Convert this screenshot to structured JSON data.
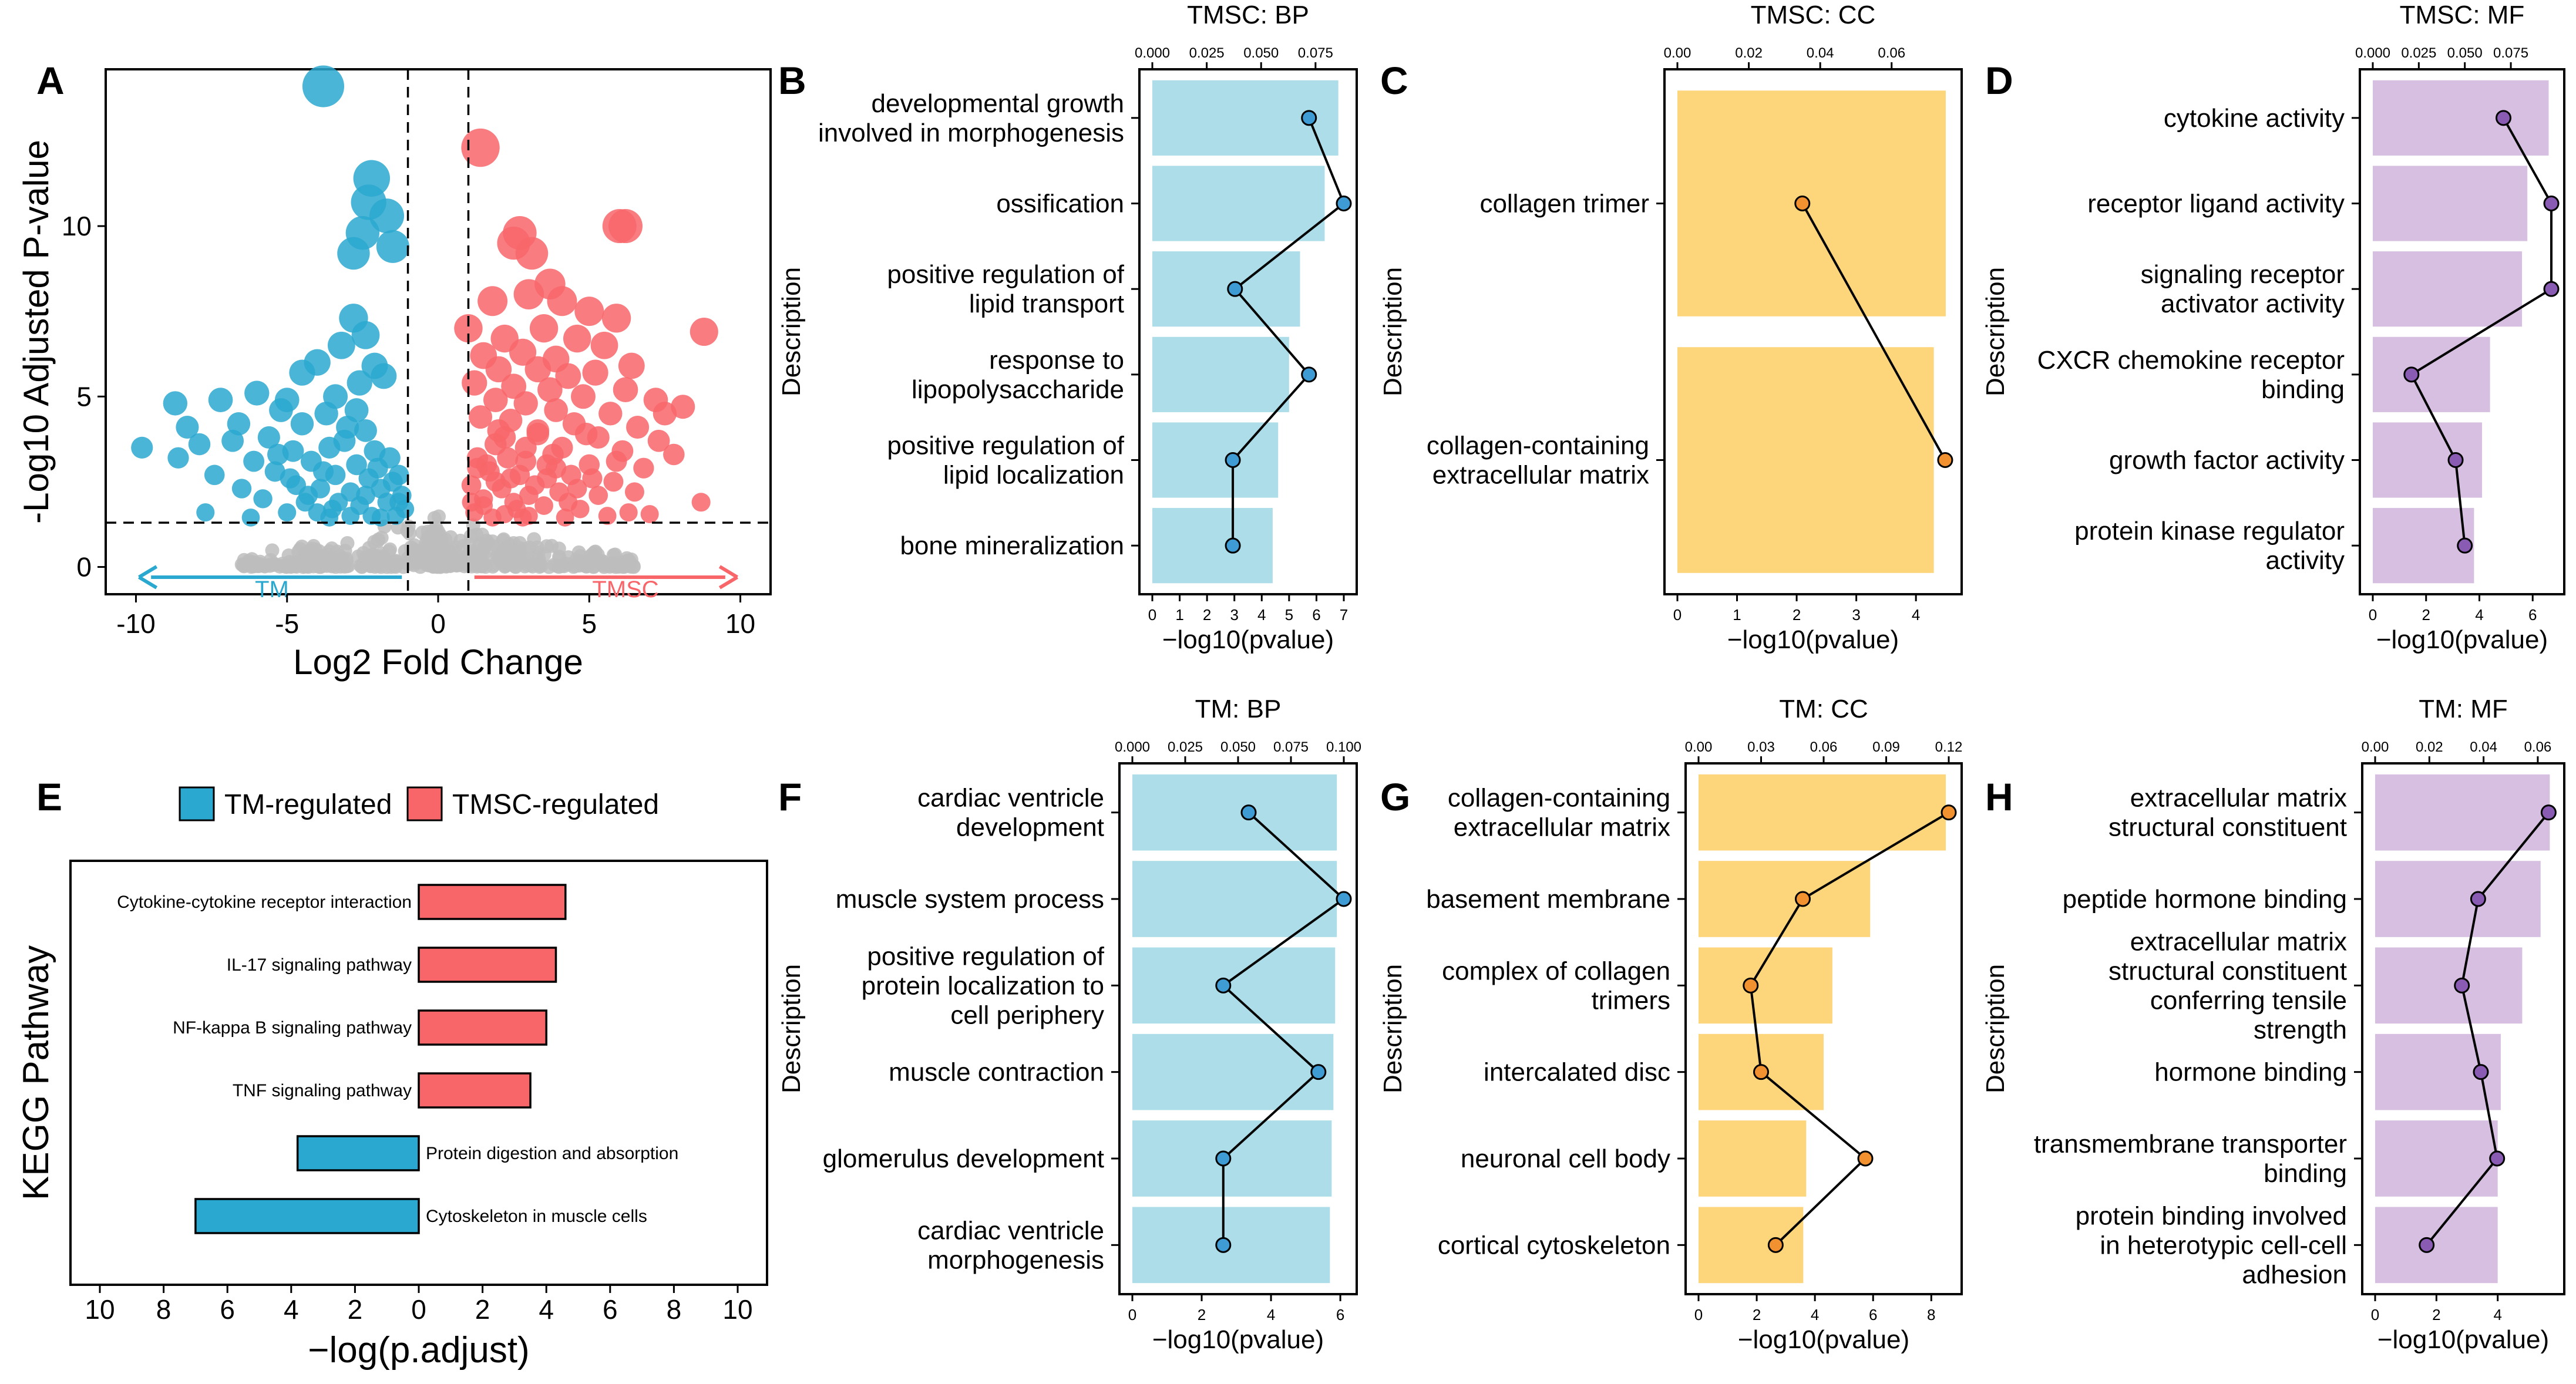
{
  "colors": {
    "tm": "#2aa8cf",
    "tmsc": "#f8666a",
    "grey": "#bdbdbd",
    "bp_bar": "#acdde9",
    "bp_dot": "#3e9bd3",
    "cc_bar": "#fdd57b",
    "cc_dot": "#f2912f",
    "mf_bar": "#d6bfe0",
    "mf_dot": "#8a5bb2"
  },
  "panel_labels": [
    "A",
    "B",
    "C",
    "D",
    "E",
    "F",
    "G",
    "H"
  ],
  "chart_data": [
    {
      "id": "A",
      "type": "scatter",
      "title": "",
      "xlabel": "Log2 Fold Change",
      "ylabel": "-Log10 Adjusted P-value",
      "xlim": [
        -11,
        11
      ],
      "ylim": [
        -0.8,
        14.6
      ],
      "xticks": [
        -10,
        -5,
        0,
        5,
        10
      ],
      "yticks": [
        0,
        5,
        10
      ],
      "thresholds": {
        "fc": [
          -1,
          1
        ],
        "p": 1.3
      },
      "arrow_labels": {
        "down": "TM",
        "up": "TMSC"
      },
      "down_points": [
        [
          -3.8,
          14.1
        ],
        [
          -2.2,
          11.4
        ],
        [
          -2.3,
          10.7
        ],
        [
          -1.7,
          10.3
        ],
        [
          -2.5,
          9.8
        ],
        [
          -2.8,
          9.2
        ],
        [
          -1.5,
          9.4
        ],
        [
          -2.8,
          7.3
        ],
        [
          -2.4,
          6.8
        ],
        [
          -4.0,
          6.0
        ],
        [
          -3.2,
          6.5
        ],
        [
          -2.1,
          5.9
        ],
        [
          -1.8,
          5.6
        ],
        [
          -4.5,
          5.7
        ],
        [
          -2.6,
          5.4
        ],
        [
          -3.4,
          5.0
        ],
        [
          -5.0,
          4.9
        ],
        [
          -6.0,
          5.1
        ],
        [
          -8.7,
          4.8
        ],
        [
          -7.2,
          4.9
        ],
        [
          -5.2,
          4.6
        ],
        [
          -3.7,
          4.5
        ],
        [
          -8.3,
          4.1
        ],
        [
          -6.6,
          4.2
        ],
        [
          -4.5,
          4.2
        ],
        [
          -3.0,
          4.1
        ],
        [
          -2.4,
          4.0
        ],
        [
          -7.9,
          3.6
        ],
        [
          -5.6,
          3.8
        ],
        [
          -9.8,
          3.5
        ],
        [
          -4.8,
          3.4
        ],
        [
          -3.6,
          3.5
        ],
        [
          -2.1,
          3.4
        ],
        [
          -8.6,
          3.2
        ],
        [
          -6.1,
          3.1
        ],
        [
          -4.2,
          3.1
        ],
        [
          -2.7,
          3.0
        ],
        [
          -1.6,
          3.2
        ],
        [
          -7.4,
          2.7
        ],
        [
          -5.4,
          2.8
        ],
        [
          -3.4,
          2.7
        ],
        [
          -2.3,
          2.6
        ],
        [
          -1.3,
          2.7
        ],
        [
          -6.5,
          2.3
        ],
        [
          -4.7,
          2.4
        ],
        [
          -3.9,
          2.3
        ],
        [
          -2.9,
          2.2
        ],
        [
          -1.9,
          2.3
        ],
        [
          -1.2,
          2.1
        ],
        [
          -5.8,
          2.0
        ],
        [
          -4.4,
          1.9
        ],
        [
          -3.3,
          1.9
        ],
        [
          -2.6,
          1.8
        ],
        [
          -1.7,
          1.9
        ],
        [
          -1.1,
          1.7
        ],
        [
          -7.7,
          1.6
        ],
        [
          -5.0,
          1.6
        ],
        [
          -4.0,
          1.6
        ],
        [
          -2.9,
          1.5
        ],
        [
          -2.2,
          1.5
        ],
        [
          -1.4,
          1.5
        ],
        [
          -6.2,
          1.45
        ],
        [
          -3.6,
          1.45
        ],
        [
          -1.9,
          1.45
        ],
        [
          -4.9,
          2.6
        ],
        [
          -3.1,
          3.7
        ],
        [
          -2.0,
          2.9
        ],
        [
          -3.8,
          2.8
        ],
        [
          -5.3,
          3.3
        ],
        [
          -6.8,
          3.7
        ],
        [
          -1.5,
          2.5
        ],
        [
          -2.7,
          4.6
        ],
        [
          -4.3,
          2.1
        ],
        [
          -3.5,
          1.7
        ],
        [
          -2.4,
          2.1
        ],
        [
          -1.3,
          1.9
        ]
      ],
      "up_points": [
        [
          1.4,
          12.3
        ],
        [
          6.2,
          10.0
        ],
        [
          6.0,
          10.0
        ],
        [
          2.7,
          9.8
        ],
        [
          2.5,
          9.5
        ],
        [
          3.1,
          9.2
        ],
        [
          3.7,
          8.3
        ],
        [
          3.0,
          8.0
        ],
        [
          1.8,
          7.8
        ],
        [
          4.1,
          7.8
        ],
        [
          5.0,
          7.5
        ],
        [
          5.9,
          7.3
        ],
        [
          8.8,
          6.9
        ],
        [
          1.0,
          7.0
        ],
        [
          3.5,
          7.0
        ],
        [
          2.2,
          6.7
        ],
        [
          4.6,
          6.7
        ],
        [
          5.5,
          6.5
        ],
        [
          1.5,
          6.2
        ],
        [
          2.8,
          6.3
        ],
        [
          3.9,
          6.1
        ],
        [
          6.4,
          5.9
        ],
        [
          2.0,
          5.8
        ],
        [
          3.3,
          5.8
        ],
        [
          4.3,
          5.6
        ],
        [
          5.2,
          5.7
        ],
        [
          1.2,
          5.4
        ],
        [
          2.5,
          5.3
        ],
        [
          3.7,
          5.2
        ],
        [
          6.2,
          5.2
        ],
        [
          4.8,
          5.0
        ],
        [
          7.2,
          4.9
        ],
        [
          1.9,
          4.9
        ],
        [
          2.9,
          4.8
        ],
        [
          8.1,
          4.7
        ],
        [
          3.9,
          4.6
        ],
        [
          5.7,
          4.5
        ],
        [
          7.5,
          4.5
        ],
        [
          1.4,
          4.4
        ],
        [
          2.4,
          4.3
        ],
        [
          4.5,
          4.2
        ],
        [
          6.6,
          4.1
        ],
        [
          3.3,
          4.0
        ],
        [
          5.3,
          3.8
        ],
        [
          7.3,
          3.7
        ],
        [
          1.9,
          3.6
        ],
        [
          2.9,
          3.5
        ],
        [
          4.1,
          3.5
        ],
        [
          6.1,
          3.4
        ],
        [
          7.8,
          3.3
        ],
        [
          1.3,
          3.2
        ],
        [
          2.3,
          3.2
        ],
        [
          3.6,
          3.0
        ],
        [
          5.0,
          3.0
        ],
        [
          6.8,
          2.9
        ],
        [
          1.7,
          2.8
        ],
        [
          2.7,
          2.7
        ],
        [
          4.4,
          2.7
        ],
        [
          5.8,
          2.5
        ],
        [
          1.1,
          2.4
        ],
        [
          2.1,
          2.3
        ],
        [
          3.2,
          2.4
        ],
        [
          4.0,
          2.2
        ],
        [
          5.3,
          2.1
        ],
        [
          8.7,
          1.9
        ],
        [
          1.5,
          2.0
        ],
        [
          2.5,
          1.9
        ],
        [
          3.5,
          1.8
        ],
        [
          4.7,
          1.7
        ],
        [
          6.3,
          1.6
        ],
        [
          1.2,
          1.6
        ],
        [
          2.2,
          1.55
        ],
        [
          3.0,
          1.5
        ],
        [
          4.2,
          1.45
        ],
        [
          5.6,
          1.5
        ],
        [
          7.0,
          1.55
        ],
        [
          1.8,
          1.45
        ],
        [
          2.8,
          1.45
        ],
        [
          2.0,
          4.0
        ],
        [
          3.8,
          3.3
        ],
        [
          4.9,
          3.9
        ],
        [
          1.6,
          3.0
        ],
        [
          3.0,
          2.1
        ],
        [
          2.4,
          2.6
        ],
        [
          1.3,
          2.9
        ],
        [
          4.6,
          2.3
        ],
        [
          3.6,
          2.6
        ],
        [
          5.9,
          3.1
        ],
        [
          2.6,
          1.7
        ],
        [
          1.9,
          2.5
        ],
        [
          3.3,
          3.9
        ],
        [
          4.3,
          1.9
        ],
        [
          1.5,
          1.8
        ],
        [
          2.9,
          3.1
        ],
        [
          3.9,
          2.9
        ],
        [
          5.1,
          2.6
        ],
        [
          6.5,
          2.2
        ],
        [
          2.2,
          3.8
        ],
        [
          1.1,
          1.9
        ]
      ]
    },
    {
      "id": "B",
      "type": "bar",
      "title": "TMSC: BP",
      "xlabel": "−log10(pvalue)",
      "ylabel": "Description",
      "palette": "bp",
      "categories": [
        [
          "developmental growth",
          "involved in morphogenesis"
        ],
        [
          "ossification"
        ],
        [
          "positive regulation of",
          "lipid transport"
        ],
        [
          "response to",
          "lipopolysaccharide"
        ],
        [
          "positive regulation of",
          "lipid localization"
        ],
        [
          "bone mineralization"
        ]
      ],
      "values": [
        6.8,
        6.3,
        5.4,
        5.0,
        4.6,
        4.4
      ],
      "xlim": [
        0,
        7.0
      ],
      "xticks": [
        0,
        1,
        2,
        3,
        4,
        5,
        6,
        7
      ],
      "overlay": [
        0.072,
        0.088,
        0.038,
        0.072,
        0.037,
        0.037
      ],
      "overlay_lim": [
        0,
        0.088
      ],
      "overlay_ticks": [
        "0.000",
        "0.025",
        "0.050",
        "0.075"
      ]
    },
    {
      "id": "C",
      "type": "bar",
      "title": "TMSC: CC",
      "xlabel": "−log10(pvalue)",
      "ylabel": "Description",
      "palette": "cc",
      "categories": [
        [
          "collagen trimer"
        ],
        [
          "collagen-containing",
          "extracellular matrix"
        ]
      ],
      "values": [
        4.5,
        4.3
      ],
      "xlim": [
        0,
        4.55
      ],
      "xticks": [
        0,
        1,
        2,
        3,
        4
      ],
      "overlay": [
        0.035,
        0.075
      ],
      "overlay_lim": [
        0,
        0.076
      ],
      "overlay_ticks": [
        "0.00",
        "0.02",
        "0.04",
        "0.06"
      ]
    },
    {
      "id": "D",
      "type": "bar",
      "title": "TMSC: MF",
      "xlabel": "−log10(pvalue)",
      "ylabel": "Description",
      "palette": "mf",
      "categories": [
        [
          "cytokine activity"
        ],
        [
          "receptor ligand activity"
        ],
        [
          "signaling receptor",
          "activator activity"
        ],
        [
          "CXCR chemokine receptor",
          "binding"
        ],
        [
          "growth factor activity"
        ],
        [
          "protein kinase regulator",
          "activity"
        ]
      ],
      "values": [
        6.6,
        5.8,
        5.6,
        4.4,
        4.1,
        3.8
      ],
      "xlim": [
        0,
        6.7
      ],
      "xticks": [
        0,
        2,
        4,
        6
      ],
      "overlay": [
        0.071,
        0.097,
        0.097,
        0.021,
        0.045,
        0.05
      ],
      "overlay_lim": [
        0,
        0.097
      ],
      "overlay_ticks": [
        "0.000",
        "0.025",
        "0.050",
        "0.075"
      ]
    },
    {
      "id": "E",
      "type": "bar",
      "orientation": "diverging-horizontal",
      "title": "",
      "xlabel": "−log(p.adjust)",
      "ylabel": "KEGG Pathway",
      "legend": [
        "TM-regulated",
        "TMSC-regulated"
      ],
      "xticks": [
        "10",
        "8",
        "6",
        "4",
        "2",
        "0",
        "2",
        "4",
        "6",
        "8",
        "10"
      ],
      "xlim": [
        -10,
        10
      ],
      "categories": [
        "Cytokine-cytokine receptor interaction",
        "IL-17 signaling pathway",
        "NF-kappa B signaling pathway",
        "TNF signaling pathway",
        "Protein digestion and absorption",
        "Cytoskeleton in muscle cells"
      ],
      "groups": [
        "TMSC",
        "TMSC",
        "TMSC",
        "TMSC",
        "TM",
        "TM"
      ],
      "values": [
        4.6,
        4.3,
        4.0,
        3.5,
        3.8,
        7.0
      ]
    },
    {
      "id": "F",
      "type": "bar",
      "title": "TM: BP",
      "xlabel": "−log10(pvalue)",
      "ylabel": "Description",
      "palette": "bp",
      "categories": [
        [
          "cardiac ventricle",
          "development"
        ],
        [
          "muscle system process"
        ],
        [
          "positive regulation of",
          "protein localization to",
          "cell periphery"
        ],
        [
          "muscle contraction"
        ],
        [
          "glomerulus development"
        ],
        [
          "cardiac ventricle",
          "morphogenesis"
        ]
      ],
      "values": [
        5.9,
        5.9,
        5.85,
        5.8,
        5.75,
        5.7
      ],
      "xlim": [
        0,
        6.1
      ],
      "xticks": [
        0,
        2,
        4,
        6
      ],
      "overlay": [
        0.055,
        0.1,
        0.043,
        0.088,
        0.043,
        0.043
      ],
      "overlay_lim": [
        0,
        0.1
      ],
      "overlay_ticks": [
        "0.000",
        "0.025",
        "0.050",
        "0.075",
        "0.100"
      ]
    },
    {
      "id": "G",
      "type": "bar",
      "title": "TM: CC",
      "xlabel": "−log10(pvalue)",
      "ylabel": "Description",
      "palette": "cc",
      "categories": [
        [
          "collagen-containing",
          "extracellular matrix"
        ],
        [
          "basement membrane"
        ],
        [
          "complex of collagen",
          "trimers"
        ],
        [
          "intercalated disc"
        ],
        [
          "neuronal cell body"
        ],
        [
          "cortical cytoskeleton"
        ]
      ],
      "values": [
        8.5,
        5.9,
        4.6,
        4.3,
        3.7,
        3.6
      ],
      "xlim": [
        0,
        8.6
      ],
      "xticks": [
        0,
        2,
        4,
        6,
        8
      ],
      "overlay": [
        0.12,
        0.05,
        0.025,
        0.03,
        0.08,
        0.037
      ],
      "overlay_lim": [
        0,
        0.12
      ],
      "overlay_ticks": [
        "0.00",
        "0.03",
        "0.06",
        "0.09",
        "0.12"
      ]
    },
    {
      "id": "H",
      "type": "bar",
      "title": "TM: MF",
      "xlabel": "−log10(pvalue)",
      "ylabel": "Description",
      "palette": "mf",
      "categories": [
        [
          "extracellular matrix",
          "structural constituent"
        ],
        [
          "peptide hormone binding"
        ],
        [
          "extracellular matrix",
          "structural constituent",
          "conferring tensile",
          "strength"
        ],
        [
          "hormone binding"
        ],
        [
          "transmembrane transporter",
          "binding"
        ],
        [
          "protein binding involved",
          "in heterotypic cell-cell",
          "adhesion"
        ]
      ],
      "values": [
        5.7,
        5.4,
        4.8,
        4.1,
        4.0,
        4.0
      ],
      "xlim": [
        0,
        5.75
      ],
      "xticks": [
        0,
        2,
        4
      ],
      "overlay": [
        0.064,
        0.038,
        0.032,
        0.039,
        0.045,
        0.019
      ],
      "overlay_lim": [
        0,
        0.065
      ],
      "overlay_ticks": [
        "0.00",
        "0.02",
        "0.04",
        "0.06"
      ]
    }
  ]
}
